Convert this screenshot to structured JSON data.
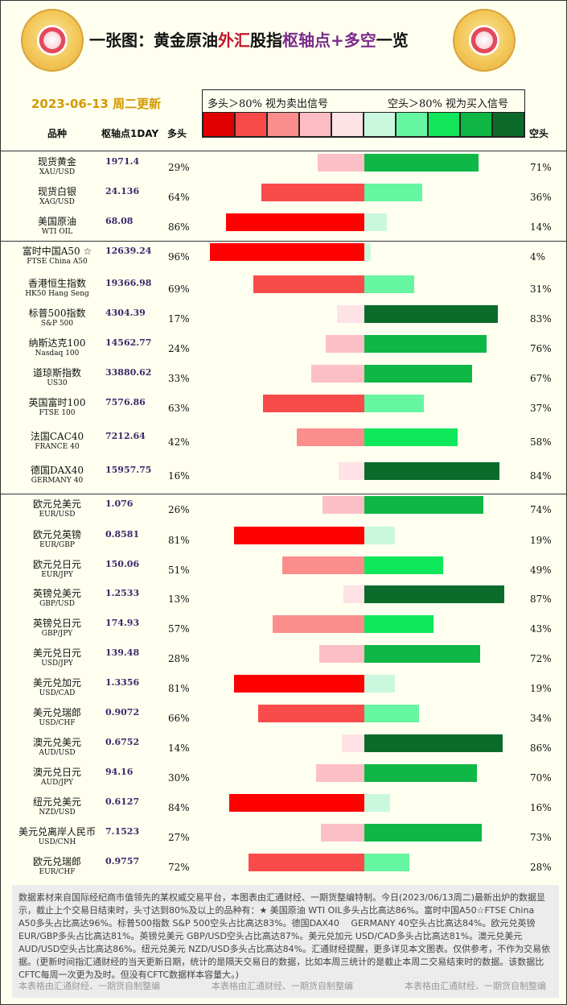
{
  "title": {
    "p1": "一张图：黄金原油",
    "p2": "外汇",
    "p3a": "股指",
    "p3b": "枢轴点+多空",
    "p4": "一览"
  },
  "date": "2023-06-13 周二更新",
  "legend": {
    "sell_text": "多头＞80% 视为卖出信号",
    "buy_text": "空头＞80% 视为买入信号",
    "swatches": [
      "#e00000",
      "#f94a4a",
      "#fb8d8d",
      "#fdbcc3",
      "#fde3e6",
      "#c9f8de",
      "#66f5a1",
      "#12e55a",
      "#10b745",
      "#0c6b2b"
    ]
  },
  "headers": {
    "name": "品种",
    "pivot": "枢轴点1DAY",
    "long": "多头",
    "short": "空头"
  },
  "chart_data": {
    "type": "bar",
    "series": [
      {
        "name": "多头",
        "key": "long"
      },
      {
        "name": "空头",
        "key": "short"
      }
    ],
    "rows": [
      {
        "cn": "现货黄金",
        "en": "XAU/USD",
        "pivot": "1971.4",
        "long": 29,
        "short": 71
      },
      {
        "cn": "现货白银",
        "en": "XAG/USD",
        "pivot": "24.136",
        "long": 64,
        "short": 36
      },
      {
        "cn": "美国原油",
        "en": "WTI OIL",
        "pivot": "68.08",
        "long": 86,
        "short": 14
      },
      {
        "cn": "富时中国A50 ☆",
        "en": "FTSE China A50",
        "pivot": "12639.24",
        "long": 96,
        "short": 4
      },
      {
        "cn": "香港恒生指数",
        "en": "HK50 Hang Seng",
        "pivot": "19366.98",
        "long": 69,
        "short": 31
      },
      {
        "cn": "标普500指数",
        "en": "S&P 500",
        "pivot": "4304.39",
        "long": 17,
        "short": 83
      },
      {
        "cn": "纳斯达克100",
        "en": "Nasdaq 100",
        "pivot": "14562.77",
        "long": 24,
        "short": 76
      },
      {
        "cn": "道琼斯指数",
        "en": "US30",
        "pivot": "33880.62",
        "long": 33,
        "short": 67
      },
      {
        "cn": "英国富时100",
        "en": "FTSE 100",
        "pivot": "7576.86",
        "long": 63,
        "short": 37
      },
      {
        "cn": "法国CAC40",
        "en": "FRANCE 40",
        "pivot": "7212.64",
        "long": 42,
        "short": 58
      },
      {
        "cn": "德国DAX40",
        "en": "GERMANY 40",
        "pivot": "15957.75",
        "long": 16,
        "short": 84
      },
      {
        "cn": "欧元兑美元",
        "en": "EUR/USD",
        "pivot": "1.076",
        "long": 26,
        "short": 74
      },
      {
        "cn": "欧元兑英镑",
        "en": "EUR/GBP",
        "pivot": "0.8581",
        "long": 81,
        "short": 19
      },
      {
        "cn": "欧元兑日元",
        "en": "EUR/JPY",
        "pivot": "150.06",
        "long": 51,
        "short": 49
      },
      {
        "cn": "英镑兑美元",
        "en": "GBP/USD",
        "pivot": "1.2533",
        "long": 13,
        "short": 87
      },
      {
        "cn": "英镑兑日元",
        "en": "GBP/JPY",
        "pivot": "174.93",
        "long": 57,
        "short": 43
      },
      {
        "cn": "美元兑日元",
        "en": "USD/JPY",
        "pivot": "139.48",
        "long": 28,
        "short": 72
      },
      {
        "cn": "美元兑加元",
        "en": "USD/CAD",
        "pivot": "1.3356",
        "long": 81,
        "short": 19
      },
      {
        "cn": "美元兑瑞郎",
        "en": "USD/CHF",
        "pivot": "0.9072",
        "long": 66,
        "short": 34
      },
      {
        "cn": "澳元兑美元",
        "en": "AUD/USD",
        "pivot": "0.6752",
        "long": 14,
        "short": 86
      },
      {
        "cn": "澳元兑日元",
        "en": "AUD/JPY",
        "pivot": "94.16",
        "long": 30,
        "short": 70
      },
      {
        "cn": "纽元兑美元",
        "en": "NZD/USD",
        "pivot": "0.6127",
        "long": 84,
        "short": 16
      },
      {
        "cn": "美元兑离岸人民币",
        "en": "USD/CNH",
        "pivot": "7.1523",
        "long": 27,
        "short": 73
      },
      {
        "cn": "欧元兑瑞郎",
        "en": "EUR/CHF",
        "pivot": "0.9757",
        "long": 72,
        "short": 28
      }
    ]
  },
  "footer": {
    "text": "数据素材来自国际经纪商市值领先的某权威交易平台，本图表由汇通财经、一期货整编特制。今日(2023/06/13周二)最新出炉的数据显示，截止上个交易日结束时，头寸达到80%及以上的品种有：★ 美国原油 WTI OIL多头占比高达86%。富时中国A50☆FTSE China A50多头占比高达96%。标普500指数 S&P 500空头占比高达83%。德国DAX40　 GERMANY 40空头占比高达84%。欧元兑英镑 EUR/GBP多头占比高达81%。英镑兑美元 GBP/USD空头占比高达87%。美元兑加元 USD/CAD多头占比高达81%。澳元兑美元 AUD/USD空头占比高达86%。纽元兑美元 NZD/USD多头占比高达84%。汇通财经提醒，更多详见本文图表。仅供参考，不作为交易依据。(更新时间指汇通财经的当天更新日期，统计的是隔天交易日的数据，比如本周三统计的是截止本周二交易结束时的数据。该数据比CFTC每周一次更为及时。但没有CFTC数据样本容量大。)",
    "credit": "本表格由汇通财经、一期货自制整编"
  }
}
